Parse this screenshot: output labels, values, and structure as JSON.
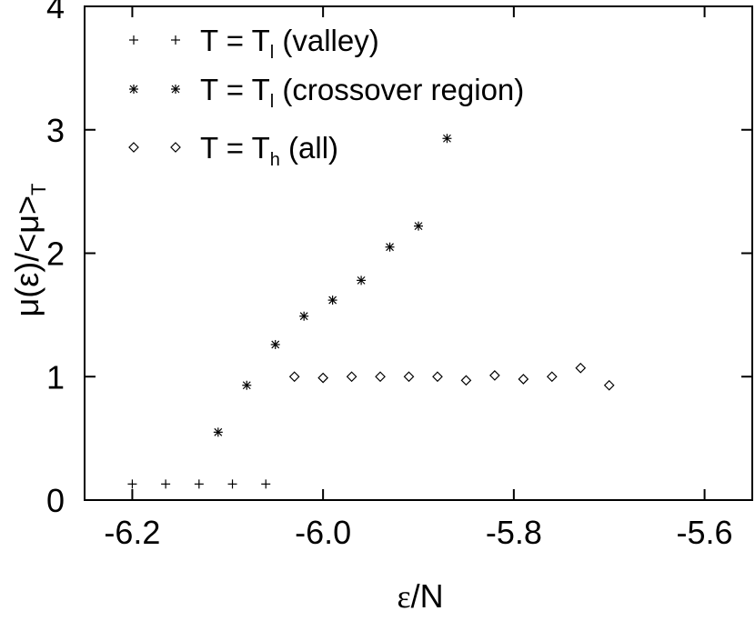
{
  "chart_data": {
    "type": "scatter",
    "xlabel_main": "ε",
    "xlabel_rest": "/N",
    "ylabel_parts": [
      "μ(ε)/<μ>",
      "T"
    ],
    "xlim": [
      -6.25,
      -5.55
    ],
    "ylim": [
      0,
      4
    ],
    "x_ticks": [
      -6.2,
      -6.0,
      -5.8,
      -5.6
    ],
    "x_tick_labels": [
      "-6.2",
      "-6.0",
      "-5.8",
      "-5.6"
    ],
    "y_ticks": [
      0,
      1,
      2,
      3,
      4
    ],
    "y_tick_labels": [
      "0",
      "1",
      "2",
      "3",
      "4"
    ],
    "legend_position": "top-left",
    "series": [
      {
        "marker": "plus",
        "legend_main": "T = T",
        "legend_sub": "l",
        "legend_rest": " (valley)",
        "x": [
          -6.2,
          -6.165,
          -6.13,
          -6.095,
          -6.06
        ],
        "y": [
          0.13,
          0.13,
          0.13,
          0.13,
          0.13
        ]
      },
      {
        "marker": "asterisk",
        "legend_main": "T = T",
        "legend_sub": "l",
        "legend_rest": " (crossover region)",
        "x": [
          -6.11,
          -6.08,
          -6.05,
          -6.02,
          -5.99,
          -5.96,
          -5.93,
          -5.9,
          -5.87
        ],
        "y": [
          0.55,
          0.93,
          1.26,
          1.49,
          1.62,
          1.78,
          2.05,
          2.22,
          2.93
        ]
      },
      {
        "marker": "diamond",
        "legend_main": "T = T",
        "legend_sub": "h",
        "legend_rest": " (all)",
        "x": [
          -6.03,
          -6.0,
          -5.97,
          -5.94,
          -5.91,
          -5.88,
          -5.85,
          -5.82,
          -5.79,
          -5.76,
          -5.73,
          -5.7
        ],
        "y": [
          1.0,
          0.99,
          1.0,
          1.0,
          1.0,
          1.0,
          0.97,
          1.01,
          0.98,
          1.0,
          1.07,
          0.93
        ]
      }
    ]
  }
}
